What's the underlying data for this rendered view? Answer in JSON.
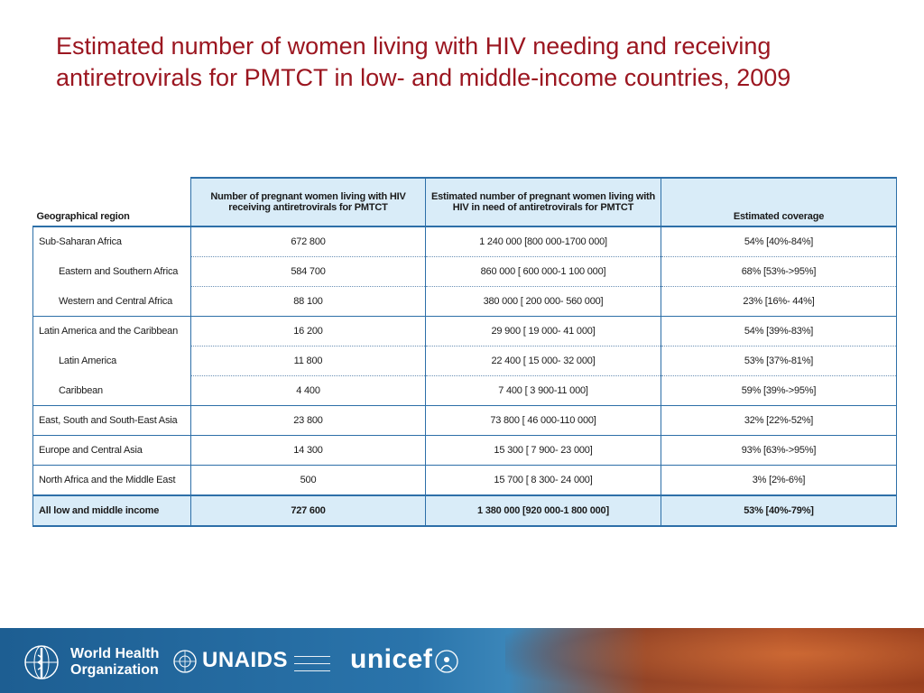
{
  "slide": {
    "title": "Estimated number of women living with HIV needing and receiving antiretrovirals for PMTCT in low- and middle-income countries, 2009"
  },
  "table": {
    "headers": {
      "region": "Geographical region",
      "receiving": "Number of pregnant women living with HIV receiving antiretrovirals for PMTCT",
      "need": "Estimated number of pregnant women living with HIV in need of antiretrovirals for PMTCT",
      "coverage": "Estimated coverage"
    },
    "rows": [
      {
        "region": "Sub-Saharan Africa",
        "receiving": "672 800",
        "need": "1 240 000 [800 000-1700 000]",
        "coverage": "54% [40%-84%]"
      },
      {
        "region": "Eastern and Southern Africa",
        "receiving": "584 700",
        "need": "860 000 [ 600 000-1 100 000]",
        "coverage": "68% [53%->95%]"
      },
      {
        "region": "Western and Central Africa",
        "receiving": "88 100",
        "need": "380 000 [ 200 000- 560 000]",
        "coverage": "23% [16%- 44%]"
      },
      {
        "region": "Latin America and the Caribbean",
        "receiving": "16 200",
        "need": "29 900 [ 19 000- 41 000]",
        "coverage": "54% [39%-83%]"
      },
      {
        "region": "Latin America",
        "receiving": "11 800",
        "need": "22 400 [ 15 000- 32 000]",
        "coverage": "53% [37%-81%]"
      },
      {
        "region": "Caribbean",
        "receiving": "4 400",
        "need": "7 400 [ 3 900-11 000]",
        "coverage": "59% [39%->95%]"
      },
      {
        "region": "East, South and South-East Asia",
        "receiving": "23 800",
        "need": "73 800 [ 46 000-110 000]",
        "coverage": "32% [22%-52%]"
      },
      {
        "region": "Europe and Central Asia",
        "receiving": "14 300",
        "need": "15 300 [ 7 900- 23 000]",
        "coverage": "93% [63%->95%]"
      },
      {
        "region": "North Africa and the Middle East",
        "receiving": "500",
        "need": "15 700 [ 8 300- 24 000]",
        "coverage": "3% [2%-6%]"
      },
      {
        "region": "All low and middle income",
        "receiving": "727 600",
        "need": "1 380 000 [920 000-1 800 000]",
        "coverage": "53% [40%-79%]"
      }
    ]
  },
  "footer": {
    "who_line1": "World Health",
    "who_line2": "Organization",
    "unaids": "UNAIDS",
    "unicef": "unicef",
    "colors": {
      "band": "#1d5e92",
      "map": "#b8552a"
    }
  }
}
